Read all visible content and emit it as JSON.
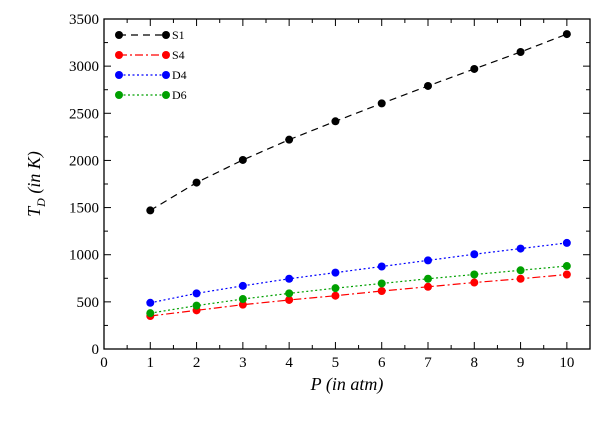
{
  "chart_data": {
    "type": "line",
    "title": "",
    "xlabel": "P (in atm)",
    "ylabel_main": "T",
    "ylabel_sub": "D",
    "ylabel_rest": " (in K)",
    "xlim": [
      0,
      10.5
    ],
    "ylim": [
      0,
      3500
    ],
    "xticks": [
      0,
      1,
      2,
      3,
      4,
      5,
      6,
      7,
      8,
      9,
      10
    ],
    "yticks": [
      0,
      500,
      1000,
      1500,
      2000,
      2500,
      3000,
      3500
    ],
    "grid": false,
    "legend_position": "top-left",
    "x": [
      1,
      2,
      3,
      4,
      5,
      6,
      7,
      8,
      9,
      10
    ],
    "series": [
      {
        "name": "S1",
        "color": "#000000",
        "dash": "dashed",
        "values": [
          1470,
          1765,
          2005,
          2220,
          2415,
          2605,
          2790,
          2970,
          3150,
          3340
        ]
      },
      {
        "name": "S4",
        "color": "#ff0000",
        "dash": "dashdot",
        "values": [
          350,
          410,
          470,
          520,
          565,
          615,
          660,
          705,
          745,
          790
        ]
      },
      {
        "name": "D4",
        "color": "#0000ff",
        "dash": "dotted",
        "values": [
          490,
          590,
          670,
          745,
          810,
          875,
          940,
          1005,
          1065,
          1125
        ]
      },
      {
        "name": "D6",
        "color": "#00a000",
        "dash": "dotted",
        "values": [
          380,
          460,
          530,
          590,
          645,
          695,
          745,
          790,
          835,
          880
        ]
      }
    ]
  }
}
